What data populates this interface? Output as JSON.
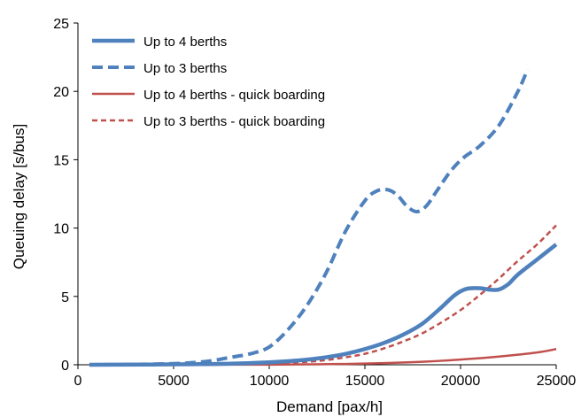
{
  "chart_data": {
    "type": "line",
    "xlabel": "Demand [pax/h]",
    "ylabel": "Queuing delay [s/bus]",
    "xlim": [
      0,
      25000
    ],
    "ylim": [
      0,
      25
    ],
    "xticks": [
      0,
      5000,
      10000,
      15000,
      20000,
      25000
    ],
    "yticks": [
      0,
      5,
      10,
      15,
      20,
      25
    ],
    "xtick_labels": [
      "0",
      "5000",
      "10000",
      "15000",
      "20000",
      "25000"
    ],
    "ytick_labels": [
      "0",
      "5",
      "10",
      "15",
      "20",
      "25"
    ],
    "grid": false,
    "legend_position": "top-left",
    "series": [
      {
        "name": "Up to 4 berths",
        "color": "#4f81bd",
        "style": "solid-thick",
        "x": [
          600,
          2000,
          4000,
          6000,
          8000,
          10000,
          11000,
          12000,
          13000,
          14000,
          15000,
          16000,
          17000,
          18000,
          19000,
          19700,
          20300,
          21000,
          21500,
          22000,
          22500,
          23000,
          24000,
          25000
        ],
        "y": [
          0,
          0.01,
          0.02,
          0.04,
          0.08,
          0.18,
          0.26,
          0.38,
          0.55,
          0.8,
          1.15,
          1.6,
          2.2,
          3.0,
          4.2,
          5.1,
          5.55,
          5.6,
          5.5,
          5.5,
          5.9,
          6.6,
          7.7,
          8.8
        ]
      },
      {
        "name": "Up to 3 berths",
        "color": "#4f81bd",
        "style": "dashed-thick",
        "x": [
          600,
          2000,
          4000,
          5000,
          6000,
          7000,
          8000,
          9000,
          10000,
          11000,
          12000,
          13000,
          14000,
          15000,
          15600,
          16200,
          16700,
          17200,
          17700,
          18200,
          18800,
          19500,
          20200,
          21000,
          22000,
          23000,
          23500
        ],
        "y": [
          0,
          0.01,
          0.05,
          0.08,
          0.15,
          0.3,
          0.55,
          0.8,
          1.3,
          2.6,
          4.4,
          6.8,
          9.8,
          12.0,
          12.7,
          12.8,
          12.4,
          11.6,
          11.2,
          11.6,
          12.8,
          14.2,
          15.2,
          16.0,
          17.5,
          20.0,
          21.6
        ]
      },
      {
        "name": "Up to 4 berths - quick boarding",
        "color": "#c0504d",
        "style": "solid-thin",
        "x": [
          600,
          5000,
          10000,
          12000,
          14000,
          16000,
          18000,
          20000,
          22000,
          24000,
          25000
        ],
        "y": [
          0,
          0,
          0.01,
          0.03,
          0.06,
          0.12,
          0.22,
          0.38,
          0.6,
          0.9,
          1.15
        ]
      },
      {
        "name": "Up to 3 berths - quick boarding",
        "color": "#c0504d",
        "style": "dashed-thin",
        "x": [
          600,
          5000,
          8000,
          10000,
          12000,
          13000,
          14000,
          15000,
          16000,
          17000,
          18000,
          19000,
          20000,
          21000,
          22000,
          23000,
          24000,
          25000
        ],
        "y": [
          0,
          0.01,
          0.05,
          0.1,
          0.22,
          0.35,
          0.55,
          0.8,
          1.2,
          1.7,
          2.3,
          3.1,
          4.0,
          5.1,
          6.3,
          7.6,
          8.8,
          10.2
        ]
      }
    ]
  }
}
